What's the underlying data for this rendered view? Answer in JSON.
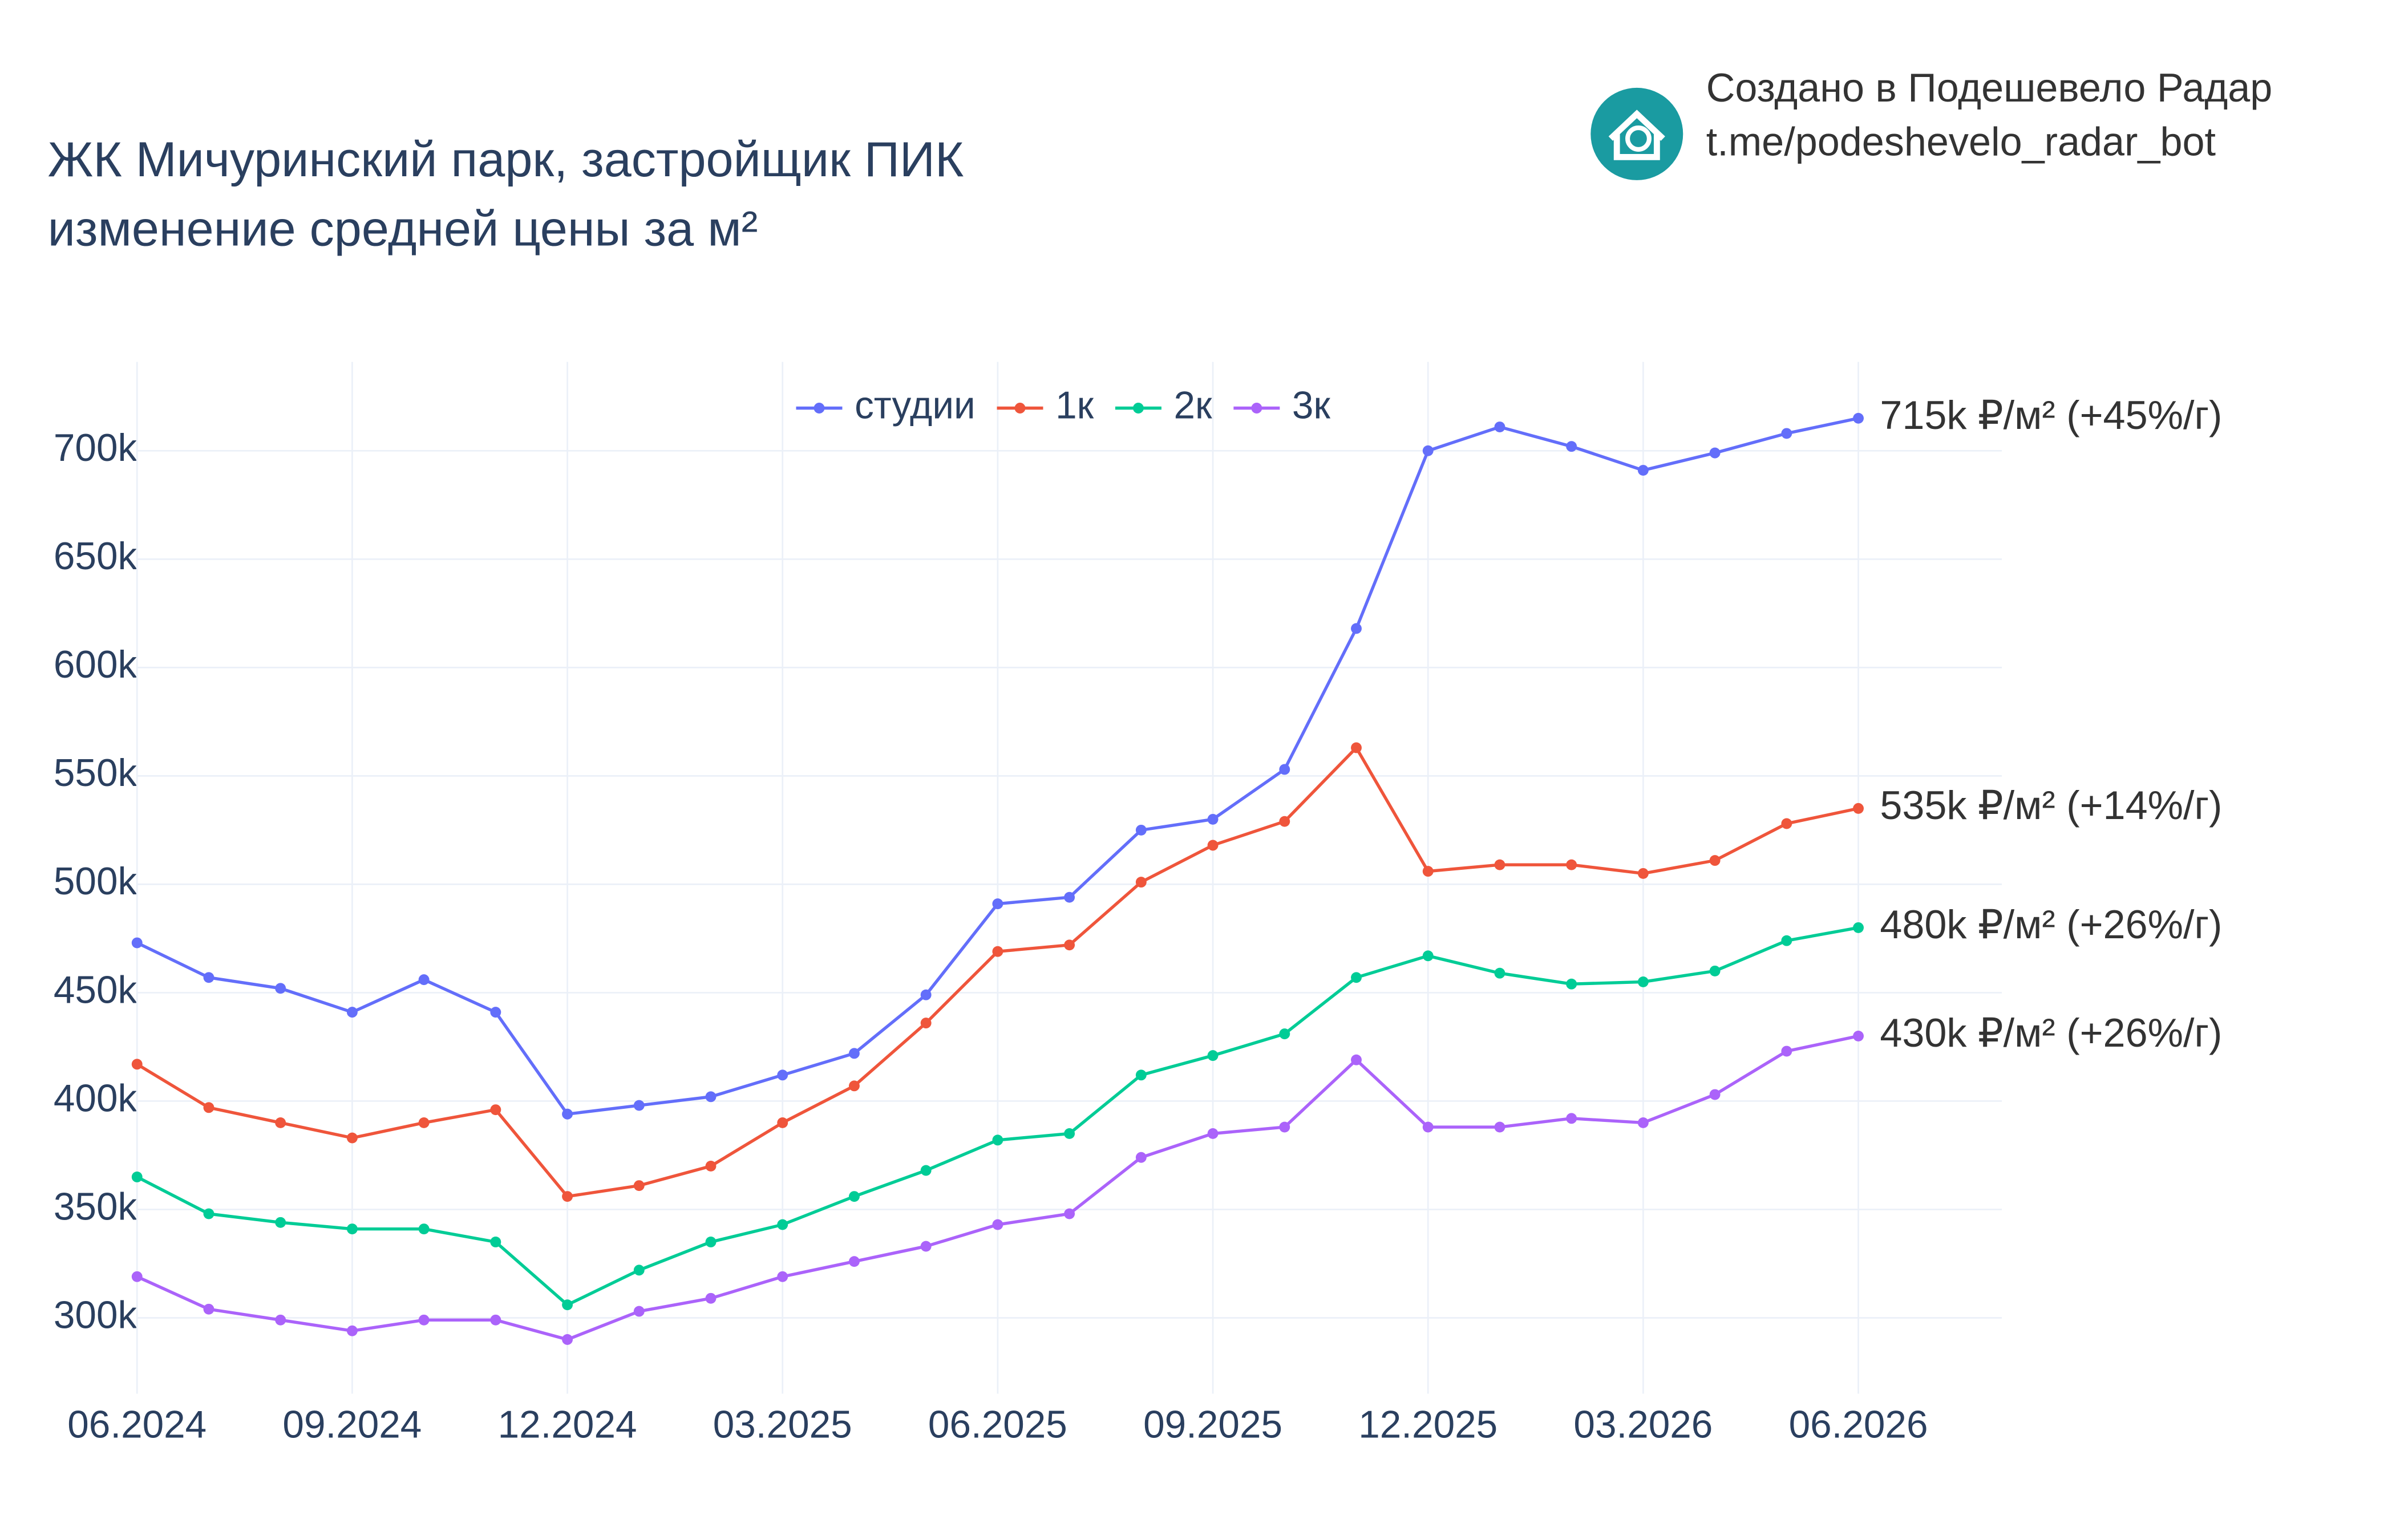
{
  "branding": {
    "line1": "Создано в Подешевело Радар",
    "line2": "t.me/podeshevelo_radar_bot"
  },
  "chart_data": {
    "type": "line",
    "title": "ЖК Мичуринский парк, застройщик ПИК",
    "subtitle": "изменение средней цены за м²",
    "x": [
      "2024-06",
      "2024-07",
      "2024-08",
      "2024-09",
      "2024-10",
      "2024-11",
      "2024-12",
      "2025-01",
      "2025-02",
      "2025-03",
      "2025-04",
      "2025-05",
      "2025-06",
      "2025-07",
      "2025-08",
      "2025-09",
      "2025-10",
      "2025-11",
      "2025-12",
      "2026-01",
      "2026-02",
      "2026-03",
      "2026-04",
      "2026-05",
      "2026-06"
    ],
    "xlim": [
      "2024-06",
      "2026-08"
    ],
    "xticks": [
      {
        "value": "2024-06",
        "label": "06.2024"
      },
      {
        "value": "2024-09",
        "label": "09.2024"
      },
      {
        "value": "2024-12",
        "label": "12.2024"
      },
      {
        "value": "2025-03",
        "label": "03.2025"
      },
      {
        "value": "2025-06",
        "label": "06.2025"
      },
      {
        "value": "2025-09",
        "label": "09.2025"
      },
      {
        "value": "2025-12",
        "label": "12.2025"
      },
      {
        "value": "2026-03",
        "label": "03.2026"
      },
      {
        "value": "2026-06",
        "label": "06.2026"
      }
    ],
    "ylim": [
      265000,
      741000
    ],
    "yticks": [
      {
        "value": 300000,
        "label": "300k"
      },
      {
        "value": 350000,
        "label": "350k"
      },
      {
        "value": 400000,
        "label": "400k"
      },
      {
        "value": 450000,
        "label": "450k"
      },
      {
        "value": 500000,
        "label": "500k"
      },
      {
        "value": 550000,
        "label": "550k"
      },
      {
        "value": 600000,
        "label": "600k"
      },
      {
        "value": 650000,
        "label": "650k"
      },
      {
        "value": 700000,
        "label": "700k"
      }
    ],
    "grid": true,
    "legend": "top",
    "series": [
      {
        "name": "студии",
        "color": "#636efa",
        "end_label": "715k ₽/м² (+45%/г)",
        "values": [
          473000,
          457000,
          452000,
          441000,
          456000,
          441000,
          394000,
          398000,
          402000,
          412000,
          422000,
          449000,
          491000,
          494000,
          525000,
          530000,
          553000,
          618000,
          700000,
          711000,
          702000,
          691000,
          699000,
          708000,
          715000
        ]
      },
      {
        "name": "1к",
        "color": "#ef553b",
        "end_label": "535k ₽/м² (+14%/г)",
        "values": [
          417000,
          397000,
          390000,
          383000,
          390000,
          396000,
          356000,
          361000,
          370000,
          390000,
          407000,
          436000,
          469000,
          472000,
          501000,
          518000,
          529000,
          563000,
          506000,
          509000,
          509000,
          505000,
          511000,
          528000,
          535000
        ]
      },
      {
        "name": "2к",
        "color": "#00cc96",
        "end_label": "480k ₽/м² (+26%/г)",
        "values": [
          365000,
          348000,
          344000,
          341000,
          341000,
          335000,
          306000,
          322000,
          335000,
          343000,
          356000,
          368000,
          382000,
          385000,
          412000,
          421000,
          431000,
          457000,
          467000,
          459000,
          454000,
          455000,
          460000,
          474000,
          480000
        ]
      },
      {
        "name": "3к",
        "color": "#ab63fa",
        "end_label": "430k ₽/м² (+26%/г)",
        "values": [
          319000,
          304000,
          299000,
          294000,
          299000,
          299000,
          290000,
          303000,
          309000,
          319000,
          326000,
          333000,
          343000,
          348000,
          374000,
          385000,
          388000,
          419000,
          388000,
          388000,
          392000,
          390000,
          403000,
          423000,
          430000
        ]
      }
    ]
  }
}
